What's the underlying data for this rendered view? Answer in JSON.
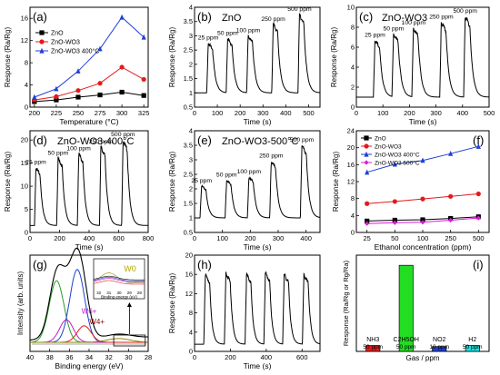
{
  "figure": {
    "type": "multi-panel",
    "panels": [
      {
        "id": "a",
        "label": "(a)"
      },
      {
        "id": "b",
        "label": "(b)"
      },
      {
        "id": "c",
        "label": "(c)"
      },
      {
        "id": "d",
        "label": "(d)"
      },
      {
        "id": "e",
        "label": "(e)"
      },
      {
        "id": "f",
        "label": "(f)"
      },
      {
        "id": "g",
        "label": "(g)"
      },
      {
        "id": "h",
        "label": "(h)"
      },
      {
        "id": "i",
        "label": "(i)"
      }
    ]
  },
  "chart_data": [
    {
      "panel": "a",
      "label": "(a)",
      "type": "line",
      "xlabel": "Temperature (°C)",
      "ylabel": "Response (Ra/Rg)",
      "xlim": [
        195,
        330
      ],
      "ylim": [
        0,
        18
      ],
      "xticks": [
        200,
        225,
        250,
        275,
        300,
        325
      ],
      "yticks": [
        0,
        4,
        8,
        12,
        16
      ],
      "legend": "top-left",
      "x": [
        200,
        225,
        250,
        275,
        300,
        325
      ],
      "series": [
        {
          "name": "ZnO",
          "color": "#000000",
          "marker": "square",
          "values": [
            1.0,
            1.3,
            1.8,
            2.2,
            2.7,
            2.1
          ]
        },
        {
          "name": "ZnO-WO3",
          "color": "#e41a1c",
          "marker": "circle",
          "values": [
            1.3,
            1.9,
            3.0,
            4.3,
            7.2,
            5.0
          ]
        },
        {
          "name": "ZnO-WO3 400°C",
          "color": "#1f3fd6",
          "marker": "triangle",
          "values": [
            1.8,
            3.3,
            6.5,
            10.5,
            16.2,
            12.6
          ]
        }
      ]
    },
    {
      "panel": "b",
      "label": "(b)",
      "type": "line",
      "title": "ZnO",
      "xlabel": "Time (s)",
      "ylabel": "Response (Ra/Rg)",
      "xlim": [
        0,
        550
      ],
      "ylim": [
        0.5,
        4.0
      ],
      "xticks": [
        0,
        100,
        200,
        300,
        400,
        500
      ],
      "yticks": [
        0.5,
        1.0,
        1.5,
        2.0,
        2.5,
        3.0,
        3.5,
        4.0
      ],
      "baseline": 1.0,
      "pulses": [
        {
          "t": 60,
          "peak": 2.75,
          "annotation": "25 ppm"
        },
        {
          "t": 145,
          "peak": 2.9,
          "annotation": "50 ppm"
        },
        {
          "t": 235,
          "peak": 3.0,
          "annotation": "100 ppm"
        },
        {
          "t": 345,
          "peak": 3.4,
          "annotation": "250 ppm"
        },
        {
          "t": 460,
          "peak": 3.75,
          "annotation": "500 ppm"
        }
      ],
      "series": [
        {
          "color": "#000000"
        }
      ]
    },
    {
      "panel": "c",
      "label": "(c)",
      "type": "line",
      "title": "ZnO-WO3",
      "xlabel": "Time (s)",
      "ylabel": "Response (Ra/Rg)",
      "xlim": [
        0,
        500
      ],
      "ylim": [
        0,
        10
      ],
      "xticks": [
        0,
        100,
        200,
        300,
        400,
        500
      ],
      "yticks": [
        0,
        2,
        4,
        6,
        8,
        10
      ],
      "baseline": 1.0,
      "pulses": [
        {
          "t": 70,
          "peak": 6.7,
          "annotation": "25 ppm"
        },
        {
          "t": 140,
          "peak": 7.3,
          "annotation": "50 ppm"
        },
        {
          "t": 215,
          "peak": 7.9,
          "annotation": "100 ppm"
        },
        {
          "t": 320,
          "peak": 8.5,
          "annotation": "250 ppm"
        },
        {
          "t": 410,
          "peak": 9.1,
          "annotation": "500 ppm"
        }
      ],
      "series": [
        {
          "color": "#000000"
        }
      ]
    },
    {
      "panel": "d",
      "label": "(d)",
      "type": "line",
      "title": "ZnO-WO3-400°C",
      "xlabel": "Time (s)",
      "ylabel": "Response (Ra/Rg)",
      "xlim": [
        0,
        800
      ],
      "ylim": [
        0,
        22
      ],
      "xticks": [
        0,
        200,
        400,
        600,
        800
      ],
      "yticks": [
        0,
        5,
        10,
        15,
        20
      ],
      "baseline": 1.5,
      "pulses": [
        {
          "t": 40,
          "peak": 14.0,
          "annotation": "25 ppm"
        },
        {
          "t": 190,
          "peak": 16.0,
          "annotation": "50 ppm"
        },
        {
          "t": 330,
          "peak": 17.0,
          "annotation": "100 ppm"
        },
        {
          "t": 480,
          "peak": 18.5,
          "annotation": "250 ppm"
        },
        {
          "t": 630,
          "peak": 20.0,
          "annotation": "500 ppm"
        }
      ],
      "series": [
        {
          "color": "#000000"
        }
      ]
    },
    {
      "panel": "e",
      "label": "(e)",
      "type": "line",
      "title": "ZnO-WO3-500°C",
      "xlabel": "Time (s)",
      "ylabel": "Response (Ra/Rg)",
      "xlim": [
        0,
        450
      ],
      "ylim": [
        0.5,
        4.0
      ],
      "xticks": [
        0,
        100,
        200,
        300,
        400
      ],
      "yticks": [
        0.5,
        1.0,
        1.5,
        2.0,
        2.5,
        3.0,
        3.5,
        4.0
      ],
      "baseline": 1.0,
      "pulses": [
        {
          "t": 25,
          "peak": 2.1,
          "annotation": "25 ppm"
        },
        {
          "t": 115,
          "peak": 2.3,
          "annotation": "50 ppm"
        },
        {
          "t": 195,
          "peak": 2.4,
          "annotation": "100 ppm"
        },
        {
          "t": 275,
          "peak": 2.95,
          "annotation": "250 ppm"
        },
        {
          "t": 385,
          "peak": 3.5,
          "annotation": "500 ppm"
        }
      ],
      "series": [
        {
          "color": "#000000"
        }
      ]
    },
    {
      "panel": "f",
      "label": "(f)",
      "type": "line",
      "xlabel": "Ethanol concentration (ppm)",
      "ylabel": "Response (Ra/Rg)",
      "ylim": [
        0,
        24
      ],
      "yticks": [
        0,
        4,
        8,
        12,
        16,
        20,
        24
      ],
      "categories": [
        "25",
        "50",
        "100",
        "250",
        "500"
      ],
      "legend": "top-left",
      "series": [
        {
          "name": "ZnO",
          "color": "#000000",
          "marker": "square",
          "values": [
            2.7,
            2.9,
            3.0,
            3.3,
            3.7
          ]
        },
        {
          "name": "ZnO-WO3",
          "color": "#e41a1c",
          "marker": "circle",
          "values": [
            6.8,
            7.3,
            7.9,
            8.5,
            9.1
          ]
        },
        {
          "name": "ZnO-WO3 400°C",
          "color": "#1f3fd6",
          "marker": "triangle",
          "values": [
            14.2,
            16.1,
            17.0,
            18.6,
            20.3
          ]
        },
        {
          "name": "ZnO-WO3 500°C",
          "color": "#d81bd8",
          "marker": "diamond",
          "values": [
            2.1,
            2.3,
            2.4,
            2.9,
            3.4
          ]
        }
      ]
    },
    {
      "panel": "g",
      "label": "(g)",
      "type": "line",
      "xlabel": "Binding energy (eV)",
      "ylabel": "Intensity (arb. units)",
      "xlim": [
        40,
        28
      ],
      "reversed_x": true,
      "xticks": [
        40,
        38,
        36,
        34,
        32,
        30,
        28
      ],
      "annotations": [
        "W0",
        "W4+",
        "W6+"
      ],
      "inset": {
        "xlabel": "Binding energy (eV)",
        "xticks": [
          32,
          31,
          30,
          29,
          28
        ],
        "label": "W0"
      },
      "series": [
        {
          "name": "fit envelope",
          "color": "#000000"
        },
        {
          "name": "W6+ 4f7/2",
          "color": "#2a9d2a",
          "center": 37.3
        },
        {
          "name": "W6+ 4f5/2",
          "color": "#c51bc5",
          "center": 35.2
        },
        {
          "name": "W5+",
          "color": "#1f3fd6",
          "center": 36.3
        },
        {
          "name": "W4+",
          "color": "#e41a1c",
          "center": 34.5
        },
        {
          "name": "W0",
          "color": "#8a8a00",
          "center": 31.0
        }
      ]
    },
    {
      "panel": "h",
      "label": "(h)",
      "type": "line",
      "xlabel": "Time (s)",
      "ylabel": "Response (Ra/Rg)",
      "xlim": [
        0,
        700
      ],
      "ylim": [
        0,
        20
      ],
      "xticks": [
        0,
        200,
        400,
        600
      ],
      "yticks": [
        0,
        4,
        8,
        12,
        16,
        20
      ],
      "baseline": 1.5,
      "pulses": [
        {
          "t": 60,
          "peak": 16.0
        },
        {
          "t": 175,
          "peak": 16.2
        },
        {
          "t": 290,
          "peak": 16.0
        },
        {
          "t": 395,
          "peak": 16.3
        },
        {
          "t": 500,
          "peak": 16.0
        },
        {
          "t": 610,
          "peak": 15.9
        }
      ],
      "series": [
        {
          "color": "#000000"
        }
      ]
    },
    {
      "panel": "i",
      "label": "(i)",
      "type": "bar",
      "xlabel": "Gas / ppm",
      "ylabel": "Response (Ra/Rg or Rg/Ra)",
      "ylim": [
        0,
        18
      ],
      "yticks": [
        0,
        2,
        4,
        6,
        8,
        10,
        12,
        14,
        16,
        18
      ],
      "categories": [
        "NH3",
        "C2H5OH",
        "NO2",
        "H2"
      ],
      "sublabels": [
        "50 ppm",
        "50 ppm",
        "10 ppm",
        "50 ppm"
      ],
      "values": [
        1.1,
        16.1,
        0.9,
        1.1
      ],
      "colors": [
        "#e41a1c",
        "#22dd22",
        "#1f3fd6",
        "#22dddd"
      ]
    }
  ]
}
